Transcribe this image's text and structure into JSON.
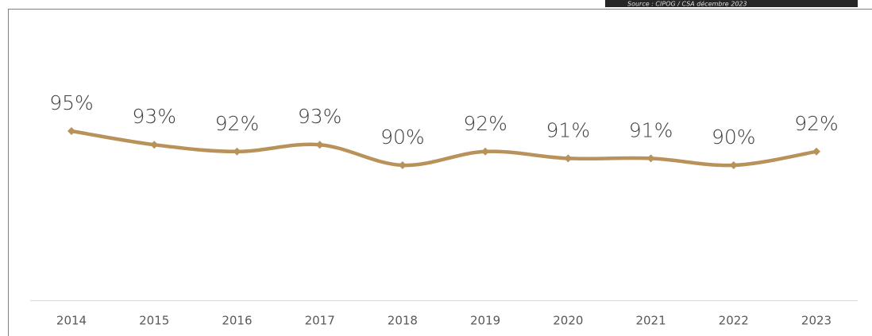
{
  "chart_data": {
    "type": "line",
    "source": "Source : CIPOG / CSA décembre 2023",
    "categories": [
      "2014",
      "2015",
      "2016",
      "2017",
      "2018",
      "2019",
      "2020",
      "2021",
      "2022",
      "2023"
    ],
    "values": [
      95,
      93,
      92,
      93,
      90,
      92,
      91,
      91,
      90,
      92
    ],
    "value_labels": [
      "95%",
      "93%",
      "92%",
      "93%",
      "90%",
      "92%",
      "91%",
      "91%",
      "90%",
      "92%"
    ],
    "color": "#b8925a"
  }
}
